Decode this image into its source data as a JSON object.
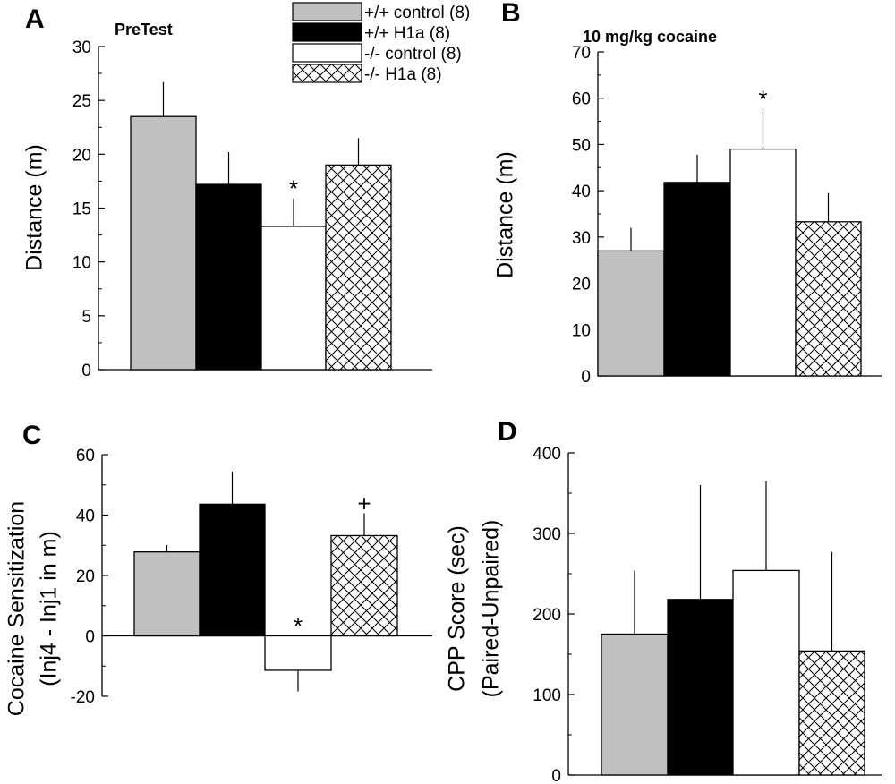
{
  "legend": {
    "entries": [
      {
        "series_index": 0,
        "label": "+/+ control (8)"
      },
      {
        "series_index": 1,
        "label": "+/+ H1a (8)"
      },
      {
        "series_index": 2,
        "label": "-/- control (8)"
      },
      {
        "series_index": 3,
        "label": "-/- H1a (8)"
      }
    ]
  },
  "series_styles": [
    {
      "name": "+/+ control",
      "fill": "#c0c0c0",
      "pattern": "solid"
    },
    {
      "name": "+/+ H1a",
      "fill": "#000000",
      "pattern": "solid"
    },
    {
      "name": "-/- control",
      "fill": "#ffffff",
      "pattern": "solid"
    },
    {
      "name": "-/- H1a",
      "fill": "#ffffff",
      "pattern": "crosshatch"
    }
  ],
  "chart_data": [
    {
      "type": "bar",
      "panel": "A",
      "title": "PreTest",
      "ylabel": [
        "Distance (m)"
      ],
      "ylim": [
        0,
        30
      ],
      "yticks": [
        0,
        5,
        10,
        15,
        20,
        25,
        30
      ],
      "categories": [
        "+/+ control (8)",
        "+/+ H1a (8)",
        "-/- control (8)",
        "-/- H1a (8)"
      ],
      "values": [
        23.5,
        17.2,
        13.3,
        19.0
      ],
      "errors": [
        3.2,
        3.0,
        2.6,
        2.5
      ],
      "annotations": [
        {
          "bar": 2,
          "text": "*"
        }
      ]
    },
    {
      "type": "bar",
      "panel": "B",
      "title": "10 mg/kg cocaine",
      "ylabel": [
        "Distance (m)"
      ],
      "ylim": [
        0,
        70
      ],
      "yticks": [
        0,
        10,
        20,
        30,
        40,
        50,
        60,
        70
      ],
      "categories": [
        "+/+ control (8)",
        "+/+ H1a (8)",
        "-/- control (8)",
        "-/- H1a (8)"
      ],
      "values": [
        27,
        41.8,
        49,
        33.3
      ],
      "errors": [
        5,
        6,
        8.7,
        6.2
      ],
      "annotations": [
        {
          "bar": 2,
          "text": "*"
        }
      ]
    },
    {
      "type": "bar",
      "panel": "C",
      "title": "",
      "ylabel": [
        "Cocaine Sensitization",
        "(Inj4 - Inj1 in m)"
      ],
      "ylim": [
        -20,
        60
      ],
      "yticks": [
        -20,
        0,
        20,
        40,
        60
      ],
      "categories": [
        "+/+ control (8)",
        "+/+ H1a (8)",
        "-/- control (8)",
        "-/- H1a (8)"
      ],
      "values": [
        27.8,
        43.6,
        -11.4,
        33.2
      ],
      "errors": [
        2.3,
        10.8,
        7.0,
        7.4
      ],
      "annotations": [
        {
          "bar": 2,
          "text": "*"
        },
        {
          "bar": 3,
          "text": "+"
        }
      ]
    },
    {
      "type": "bar",
      "panel": "D",
      "title": "",
      "ylabel": [
        "CPP Score (sec)",
        "(Paired-Unpaired)"
      ],
      "ylim": [
        0,
        400
      ],
      "yticks": [
        0,
        100,
        200,
        300,
        400
      ],
      "categories": [
        "+/+ control (8)",
        "+/+ H1a (8)",
        "-/- control (8)",
        "-/- H1a (8)"
      ],
      "values": [
        175,
        218,
        254,
        154
      ],
      "errors": [
        79,
        142,
        111,
        123
      ],
      "annotations": []
    }
  ]
}
